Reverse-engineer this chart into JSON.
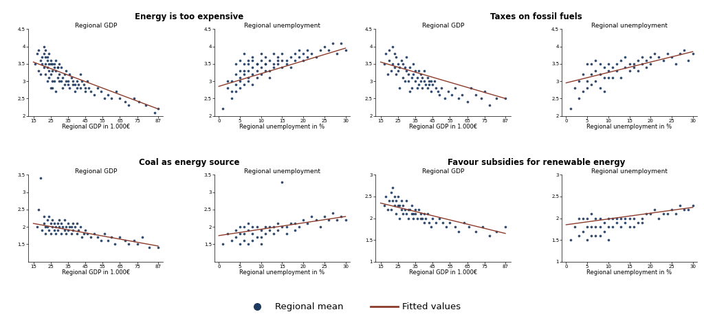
{
  "panel_titles": [
    "Energy is too expensive",
    "Taxes on fossil fuels",
    "Coal as energy source",
    "Favour subsidies for renewable energy"
  ],
  "sub_titles": [
    "Regional GDP",
    "Regional unemployment"
  ],
  "xlabel_gdp": "Regional GDP in 1.000€",
  "xlabel_unemp": "Regional unemployment in %",
  "dot_color": "#1e3a5f",
  "line_color": "#8b3a2a",
  "panels": [
    {
      "name": "Energy is too expensive",
      "gdp": {
        "ylim": [
          2.0,
          4.5
        ],
        "yticks": [
          2.0,
          2.5,
          3.0,
          3.5,
          4.0,
          4.5
        ],
        "xlim": [
          12,
          90
        ],
        "xticks": [
          15,
          25,
          35,
          45,
          55,
          65,
          75,
          87
        ],
        "fit_x": [
          15,
          87
        ],
        "fit_y": [
          3.55,
          2.2
        ],
        "points_x": [
          16,
          17,
          18,
          18,
          19,
          19,
          20,
          20,
          21,
          21,
          21,
          22,
          22,
          22,
          22,
          23,
          23,
          23,
          23,
          24,
          24,
          24,
          24,
          25,
          25,
          25,
          25,
          26,
          26,
          26,
          26,
          27,
          27,
          27,
          28,
          28,
          28,
          29,
          29,
          29,
          30,
          30,
          30,
          31,
          31,
          32,
          32,
          33,
          33,
          34,
          34,
          35,
          35,
          36,
          36,
          37,
          38,
          38,
          39,
          39,
          40,
          40,
          41,
          42,
          42,
          43,
          44,
          45,
          45,
          46,
          47,
          48,
          50,
          52,
          54,
          56,
          58,
          60,
          63,
          65,
          68,
          70,
          73,
          76,
          80,
          85,
          87
        ],
        "points_y": [
          3.5,
          3.8,
          3.3,
          3.9,
          3.6,
          3.2,
          3.7,
          3.5,
          4.0,
          3.8,
          3.4,
          3.5,
          3.2,
          3.9,
          3.7,
          3.4,
          3.7,
          3.0,
          3.6,
          3.5,
          3.3,
          3.8,
          3.1,
          2.8,
          3.2,
          3.6,
          3.5,
          3.0,
          3.5,
          2.8,
          3.3,
          3.5,
          3.0,
          3.4,
          3.3,
          3.6,
          2.7,
          3.4,
          3.1,
          3.4,
          3.2,
          3.5,
          3.0,
          3.0,
          3.4,
          3.1,
          2.8,
          3.2,
          2.9,
          3.0,
          3.3,
          3.0,
          2.9,
          3.2,
          2.8,
          3.1,
          2.9,
          3.0,
          2.7,
          2.9,
          3.0,
          2.8,
          2.9,
          3.2,
          2.8,
          3.0,
          2.9,
          2.7,
          2.8,
          3.0,
          2.8,
          2.7,
          2.6,
          2.8,
          2.7,
          2.5,
          2.6,
          2.5,
          2.7,
          2.5,
          2.4,
          2.3,
          2.5,
          2.4,
          2.3,
          2.1,
          2.2
        ]
      },
      "unemp": {
        "ylim": [
          2.0,
          4.5
        ],
        "yticks": [
          2.0,
          2.5,
          3.0,
          3.5,
          4.0,
          4.5
        ],
        "xlim": [
          -1,
          31
        ],
        "xticks": [
          0,
          5,
          10,
          15,
          20,
          25,
          30
        ],
        "fit_x": [
          0,
          30
        ],
        "fit_y": [
          2.85,
          3.95
        ],
        "points_x": [
          1,
          2,
          2,
          3,
          3,
          3,
          4,
          4,
          4,
          4,
          5,
          5,
          5,
          5,
          5,
          6,
          6,
          6,
          6,
          6,
          7,
          7,
          7,
          7,
          7,
          8,
          8,
          8,
          8,
          8,
          9,
          9,
          9,
          9,
          10,
          10,
          10,
          10,
          11,
          11,
          11,
          11,
          12,
          12,
          12,
          13,
          13,
          13,
          14,
          14,
          14,
          15,
          15,
          15,
          16,
          16,
          17,
          17,
          18,
          18,
          19,
          19,
          20,
          20,
          21,
          21,
          22,
          23,
          24,
          25,
          26,
          27,
          28,
          29,
          30
        ],
        "points_y": [
          2.2,
          2.8,
          3.0,
          2.5,
          3.0,
          2.7,
          2.7,
          3.2,
          3.5,
          2.9,
          3.0,
          3.3,
          2.8,
          3.6,
          3.1,
          3.2,
          3.5,
          2.9,
          3.8,
          3.3,
          3.3,
          3.1,
          3.6,
          3.0,
          3.5,
          3.4,
          3.2,
          3.7,
          2.9,
          3.6,
          3.5,
          3.3,
          3.1,
          3.5,
          3.4,
          3.6,
          3.2,
          3.8,
          3.5,
          3.3,
          3.7,
          3.5,
          3.3,
          3.6,
          3.1,
          3.4,
          3.8,
          3.5,
          3.5,
          3.7,
          3.6,
          3.6,
          3.4,
          3.8,
          3.6,
          3.5,
          3.7,
          3.4,
          3.8,
          3.6,
          3.7,
          3.9,
          3.8,
          3.6,
          3.7,
          3.9,
          3.8,
          3.7,
          3.9,
          4.0,
          3.9,
          4.1,
          3.8,
          4.1,
          3.9
        ]
      }
    },
    {
      "name": "Taxes on fossil fuels",
      "gdp": {
        "ylim": [
          2.0,
          4.5
        ],
        "yticks": [
          2.0,
          2.5,
          3.0,
          3.5,
          4.0,
          4.5
        ],
        "xlim": [
          12,
          90
        ],
        "xticks": [
          15,
          25,
          35,
          45,
          55,
          65,
          75,
          87
        ],
        "fit_x": [
          15,
          87
        ],
        "fit_y": [
          3.55,
          2.5
        ],
        "points_x": [
          17,
          18,
          19,
          20,
          20,
          21,
          22,
          22,
          23,
          23,
          24,
          24,
          25,
          25,
          26,
          26,
          27,
          28,
          28,
          29,
          29,
          30,
          30,
          31,
          31,
          32,
          32,
          33,
          33,
          34,
          34,
          35,
          35,
          36,
          36,
          37,
          37,
          38,
          38,
          39,
          39,
          40,
          40,
          41,
          42,
          42,
          43,
          43,
          44,
          44,
          45,
          46,
          47,
          48,
          49,
          50,
          52,
          54,
          56,
          58,
          60,
          62,
          65,
          67,
          70,
          73,
          75,
          78,
          82,
          87
        ],
        "points_y": [
          3.5,
          3.8,
          3.2,
          3.6,
          3.9,
          3.3,
          3.5,
          4.0,
          3.4,
          3.8,
          3.2,
          3.7,
          3.5,
          3.3,
          2.8,
          3.4,
          3.6,
          3.1,
          3.5,
          3.0,
          3.4,
          3.3,
          3.7,
          3.2,
          3.0,
          3.4,
          2.7,
          3.1,
          2.8,
          3.2,
          3.5,
          3.0,
          3.3,
          3.1,
          2.8,
          3.3,
          2.9,
          3.0,
          3.2,
          2.8,
          3.1,
          3.0,
          3.3,
          2.9,
          3.1,
          2.8,
          2.9,
          3.0,
          2.7,
          3.0,
          2.9,
          3.0,
          2.8,
          2.7,
          2.6,
          2.8,
          2.5,
          2.7,
          2.6,
          2.8,
          2.5,
          2.6,
          2.4,
          2.8,
          2.6,
          2.5,
          2.7,
          2.3,
          2.5,
          2.5
        ]
      },
      "unemp": {
        "ylim": [
          2.0,
          4.5
        ],
        "yticks": [
          2.0,
          2.5,
          3.0,
          3.5,
          4.0,
          4.5
        ],
        "xlim": [
          -1,
          31
        ],
        "xticks": [
          0,
          5,
          10,
          15,
          20,
          25,
          30
        ],
        "fit_x": [
          0,
          30
        ],
        "fit_y": [
          2.95,
          3.85
        ],
        "points_x": [
          1,
          2,
          3,
          3,
          4,
          4,
          5,
          5,
          5,
          6,
          6,
          6,
          7,
          7,
          7,
          8,
          8,
          8,
          9,
          9,
          9,
          10,
          10,
          10,
          11,
          11,
          12,
          12,
          13,
          13,
          14,
          14,
          15,
          15,
          16,
          16,
          17,
          17,
          18,
          18,
          19,
          19,
          20,
          20,
          21,
          22,
          23,
          24,
          25,
          26,
          27,
          28,
          29,
          30
        ],
        "points_y": [
          2.2,
          2.8,
          2.5,
          3.0,
          2.7,
          3.2,
          3.0,
          3.5,
          2.8,
          3.2,
          3.5,
          2.9,
          3.3,
          3.0,
          3.6,
          3.2,
          3.5,
          2.8,
          3.4,
          3.1,
          2.7,
          3.3,
          3.5,
          3.1,
          3.4,
          3.1,
          3.3,
          3.5,
          3.1,
          3.6,
          3.4,
          3.7,
          3.5,
          3.3,
          3.5,
          3.4,
          3.6,
          3.3,
          3.7,
          3.5,
          3.6,
          3.4,
          3.7,
          3.5,
          3.8,
          3.7,
          3.6,
          3.8,
          3.7,
          3.5,
          3.8,
          3.9,
          3.6,
          3.8
        ]
      }
    },
    {
      "name": "Coal as energy source",
      "gdp": {
        "ylim": [
          1.0,
          3.5
        ],
        "yticks": [
          1.5,
          2.0,
          2.5,
          3.0,
          3.5
        ],
        "xlim": [
          12,
          90
        ],
        "xticks": [
          15,
          25,
          35,
          45,
          55,
          65,
          75,
          87
        ],
        "fit_x": [
          15,
          87
        ],
        "fit_y": [
          2.1,
          1.45
        ],
        "points_x": [
          17,
          18,
          19,
          20,
          21,
          21,
          22,
          22,
          23,
          23,
          24,
          24,
          25,
          25,
          26,
          26,
          27,
          27,
          28,
          28,
          29,
          29,
          30,
          30,
          31,
          31,
          32,
          33,
          33,
          34,
          34,
          35,
          35,
          36,
          37,
          37,
          38,
          38,
          39,
          40,
          40,
          41,
          42,
          43,
          44,
          45,
          46,
          48,
          50,
          52,
          54,
          56,
          58,
          60,
          62,
          65,
          68,
          70,
          73,
          75,
          78,
          82,
          87
        ],
        "points_y": [
          2.0,
          2.5,
          3.4,
          1.9,
          2.3,
          2.1,
          2.0,
          1.8,
          2.2,
          2.0,
          1.9,
          2.3,
          2.1,
          1.8,
          2.0,
          2.2,
          1.9,
          2.1,
          2.0,
          1.8,
          2.1,
          1.9,
          2.0,
          2.2,
          2.1,
          1.8,
          2.0,
          1.9,
          2.2,
          2.0,
          1.8,
          2.1,
          1.9,
          2.0,
          1.8,
          2.0,
          1.9,
          2.1,
          2.0,
          1.8,
          2.1,
          1.9,
          2.0,
          1.7,
          1.8,
          1.9,
          1.8,
          1.7,
          1.8,
          1.7,
          1.6,
          1.8,
          1.6,
          1.7,
          1.5,
          1.7,
          1.6,
          1.5,
          1.6,
          1.5,
          1.7,
          1.4,
          1.4
        ]
      },
      "unemp": {
        "ylim": [
          1.0,
          3.5
        ],
        "yticks": [
          1.5,
          2.0,
          2.5,
          3.0,
          3.5
        ],
        "xlim": [
          -1,
          31
        ],
        "xticks": [
          0,
          5,
          10,
          15,
          20,
          25,
          30
        ],
        "fit_x": [
          0,
          30
        ],
        "fit_y": [
          1.75,
          2.3
        ],
        "points_x": [
          1,
          2,
          3,
          4,
          4,
          5,
          5,
          5,
          6,
          6,
          6,
          7,
          7,
          7,
          8,
          8,
          8,
          9,
          9,
          10,
          10,
          10,
          11,
          11,
          12,
          12,
          13,
          13,
          14,
          14,
          15,
          15,
          16,
          16,
          17,
          18,
          18,
          19,
          20,
          21,
          22,
          23,
          24,
          25,
          26,
          27,
          28,
          29,
          30
        ],
        "points_y": [
          1.5,
          1.8,
          1.6,
          1.9,
          1.7,
          2.0,
          1.8,
          1.5,
          2.0,
          1.8,
          1.6,
          2.1,
          1.9,
          1.5,
          2.0,
          1.8,
          1.6,
          2.0,
          1.7,
          1.9,
          1.7,
          1.5,
          2.0,
          1.8,
          2.0,
          1.9,
          2.0,
          1.8,
          2.1,
          1.9,
          3.3,
          2.0,
          2.0,
          1.8,
          2.1,
          2.1,
          1.9,
          2.0,
          2.2,
          2.1,
          2.3,
          2.2,
          2.0,
          2.3,
          2.2,
          2.4,
          2.2,
          2.3,
          2.2
        ]
      }
    },
    {
      "name": "Favour subsidies for renewable energy",
      "gdp": {
        "ylim": [
          1.0,
          3.0
        ],
        "yticks": [
          1.0,
          1.5,
          2.0,
          2.5,
          3.0
        ],
        "xlim": [
          12,
          90
        ],
        "xticks": [
          15,
          25,
          35,
          45,
          55,
          65,
          75,
          87
        ],
        "fit_x": [
          15,
          87
        ],
        "fit_y": [
          2.35,
          1.65
        ],
        "points_x": [
          17,
          18,
          19,
          20,
          21,
          21,
          22,
          22,
          23,
          23,
          24,
          24,
          25,
          25,
          26,
          26,
          27,
          27,
          28,
          28,
          29,
          30,
          30,
          31,
          31,
          32,
          33,
          33,
          34,
          34,
          35,
          35,
          36,
          37,
          38,
          38,
          39,
          40,
          40,
          41,
          42,
          43,
          44,
          45,
          47,
          49,
          51,
          53,
          55,
          58,
          60,
          63,
          66,
          70,
          74,
          78,
          82,
          87
        ],
        "points_y": [
          2.3,
          2.5,
          2.2,
          2.4,
          2.6,
          2.2,
          2.4,
          2.7,
          2.3,
          2.5,
          2.1,
          2.4,
          2.3,
          2.5,
          2.0,
          2.3,
          2.2,
          2.4,
          2.1,
          2.3,
          2.2,
          2.1,
          2.4,
          2.2,
          2.0,
          2.2,
          2.1,
          2.3,
          2.1,
          2.0,
          2.2,
          2.1,
          2.0,
          2.2,
          2.0,
          2.1,
          2.0,
          2.1,
          1.9,
          2.0,
          2.1,
          1.9,
          1.8,
          2.0,
          1.9,
          2.0,
          1.9,
          1.8,
          1.9,
          1.8,
          1.7,
          1.9,
          1.8,
          1.7,
          1.8,
          1.6,
          1.7,
          1.8
        ]
      },
      "unemp": {
        "ylim": [
          1.0,
          3.0
        ],
        "yticks": [
          1.0,
          1.5,
          2.0,
          2.5,
          3.0
        ],
        "xlim": [
          -1,
          31
        ],
        "xticks": [
          0,
          5,
          10,
          15,
          20,
          25,
          30
        ],
        "fit_x": [
          0,
          30
        ],
        "fit_y": [
          1.85,
          2.25
        ],
        "points_x": [
          1,
          2,
          3,
          3,
          4,
          4,
          5,
          5,
          5,
          6,
          6,
          6,
          7,
          7,
          7,
          8,
          8,
          8,
          9,
          9,
          10,
          10,
          10,
          11,
          11,
          12,
          12,
          13,
          13,
          14,
          14,
          15,
          15,
          16,
          16,
          17,
          18,
          18,
          19,
          20,
          21,
          22,
          23,
          24,
          25,
          26,
          27,
          28,
          29,
          30
        ],
        "points_y": [
          1.5,
          1.8,
          1.6,
          2.0,
          1.7,
          2.0,
          1.8,
          1.5,
          2.0,
          1.8,
          2.1,
          1.6,
          2.0,
          1.8,
          1.6,
          2.0,
          1.8,
          1.6,
          1.9,
          1.7,
          2.0,
          1.8,
          1.5,
          2.0,
          1.8,
          2.0,
          1.9,
          2.0,
          1.8,
          2.0,
          1.9,
          2.0,
          1.8,
          2.0,
          1.8,
          1.9,
          2.0,
          1.9,
          2.1,
          2.1,
          2.2,
          2.0,
          2.1,
          2.1,
          2.2,
          2.1,
          2.3,
          2.2,
          2.2,
          2.3
        ]
      }
    }
  ],
  "legend_dot_color": "#1e3a5f",
  "legend_line_color": "#8b3a2a",
  "background_color": "#ffffff"
}
